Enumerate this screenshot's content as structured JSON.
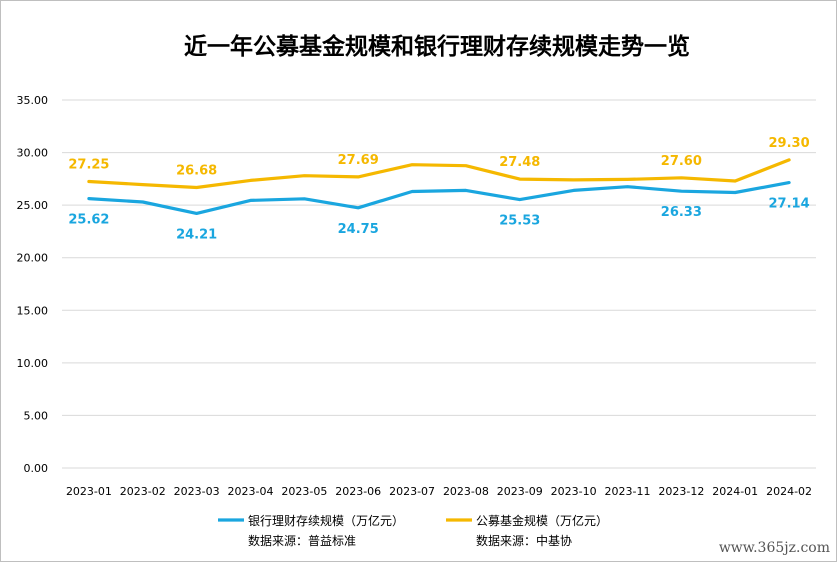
{
  "chart_data": {
    "type": "line",
    "title": "近一年公募基金规模和银行理财存续规模走势一览",
    "categories": [
      "2023-01",
      "2023-02",
      "2023-03",
      "2023-04",
      "2023-05",
      "2023-06",
      "2023-07",
      "2023-08",
      "2023-09",
      "2023-10",
      "2023-11",
      "2023-12",
      "2024-01",
      "2024-02"
    ],
    "ylim": [
      0,
      35
    ],
    "yticks": [
      "0.00",
      "5.00",
      "10.00",
      "15.00",
      "20.00",
      "25.00",
      "30.00",
      "35.00"
    ],
    "grid": true,
    "legend_position": "bottom",
    "series": [
      {
        "name": "银行理财存续规模（万亿元）",
        "color": "#1aa6df",
        "source": "数据来源：普益标准",
        "values": [
          25.62,
          25.3,
          24.21,
          25.45,
          25.6,
          24.75,
          26.3,
          26.4,
          25.53,
          26.4,
          26.75,
          26.33,
          26.2,
          27.14
        ],
        "labels": [
          [
            "0",
            "25.62"
          ],
          [
            "2",
            "24.21"
          ],
          [
            "5",
            "24.75"
          ],
          [
            "8",
            "25.53"
          ],
          [
            "11",
            "26.33"
          ],
          [
            "13",
            "27.14"
          ]
        ]
      },
      {
        "name": "公募基金规模（万亿元）",
        "color": "#f5b800",
        "source": "数据来源：中基协",
        "values": [
          27.25,
          26.95,
          26.68,
          27.35,
          27.8,
          27.69,
          28.85,
          28.75,
          27.48,
          27.4,
          27.45,
          27.6,
          27.3,
          29.3
        ],
        "labels": [
          [
            "0",
            "27.25"
          ],
          [
            "2",
            "26.68"
          ],
          [
            "5",
            "27.69"
          ],
          [
            "8",
            "27.48"
          ],
          [
            "11",
            "27.60"
          ],
          [
            "13",
            "29.30"
          ]
        ]
      }
    ]
  },
  "watermark": "www.365jz.com"
}
